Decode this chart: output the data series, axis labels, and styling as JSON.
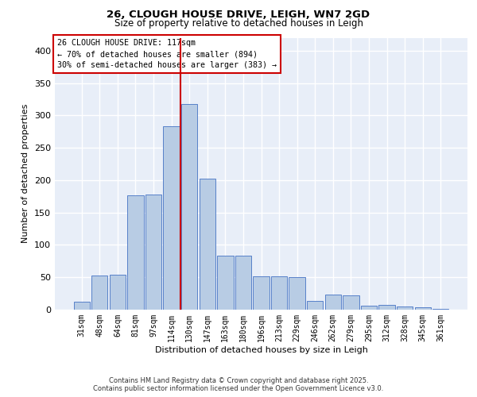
{
  "title_line1": "26, CLOUGH HOUSE DRIVE, LEIGH, WN7 2GD",
  "title_line2": "Size of property relative to detached houses in Leigh",
  "xlabel": "Distribution of detached houses by size in Leigh",
  "ylabel": "Number of detached properties",
  "bar_labels": [
    "31sqm",
    "48sqm",
    "64sqm",
    "81sqm",
    "97sqm",
    "114sqm",
    "130sqm",
    "147sqm",
    "163sqm",
    "180sqm",
    "196sqm",
    "213sqm",
    "229sqm",
    "246sqm",
    "262sqm",
    "279sqm",
    "295sqm",
    "312sqm",
    "328sqm",
    "345sqm",
    "361sqm"
  ],
  "bar_values": [
    12,
    53,
    54,
    177,
    178,
    283,
    317,
    202,
    84,
    84,
    52,
    51,
    50,
    14,
    23,
    22,
    6,
    7,
    5,
    4,
    1
  ],
  "bar_color": "#b8cce4",
  "bar_edgecolor": "#4472c4",
  "vline_index": 6,
  "vline_color": "#cc0000",
  "annotation_title": "26 CLOUGH HOUSE DRIVE: 117sqm",
  "annotation_line1": "← 70% of detached houses are smaller (894)",
  "annotation_line2": "30% of semi-detached houses are larger (383) →",
  "annotation_box_color": "#ffffff",
  "annotation_box_edgecolor": "#cc0000",
  "ylim": [
    0,
    420
  ],
  "yticks": [
    0,
    50,
    100,
    150,
    200,
    250,
    300,
    350,
    400
  ],
  "background_color": "#e8eef8",
  "grid_color": "#ffffff",
  "footer_line1": "Contains HM Land Registry data © Crown copyright and database right 2025.",
  "footer_line2": "Contains public sector information licensed under the Open Government Licence v3.0."
}
